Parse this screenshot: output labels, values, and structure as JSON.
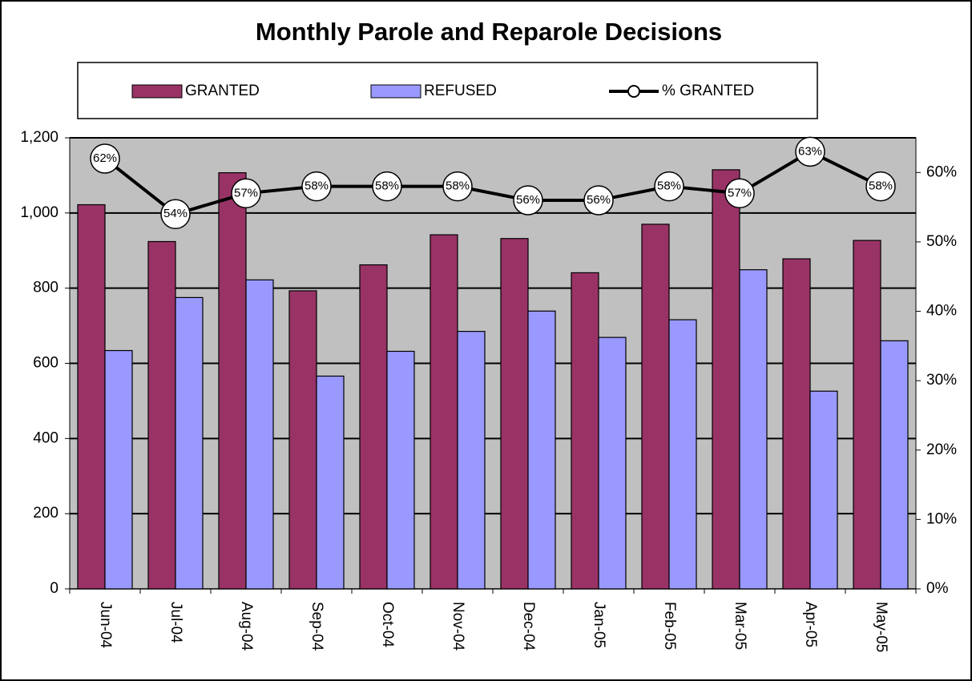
{
  "chart_data": {
    "type": "bar",
    "title": "Monthly Parole and Reparole Decisions",
    "categories": [
      "Jun-04",
      "Jul-04",
      "Aug-04",
      "Sep-04",
      "Oct-04",
      "Nov-04",
      "Dec-04",
      "Jan-05",
      "Feb-05",
      "Mar-05",
      "Apr-05",
      "May-05"
    ],
    "series": [
      {
        "name": "GRANTED",
        "color": "#993366",
        "type": "bar",
        "values": [
          1022,
          924,
          1107,
          793,
          862,
          942,
          932,
          841,
          970,
          1115,
          878,
          927
        ]
      },
      {
        "name": "REFUSED",
        "color": "#9999ff",
        "type": "bar",
        "values": [
          634,
          775,
          822,
          566,
          632,
          685,
          739,
          669,
          716,
          849,
          526,
          660
        ]
      },
      {
        "name": "% GRANTED",
        "color": "#000000",
        "type": "line",
        "axis": "y2",
        "values": [
          62,
          54,
          57,
          58,
          58,
          58,
          56,
          56,
          58,
          57,
          63,
          58
        ],
        "value_labels": [
          "62%",
          "54%",
          "57%",
          "58%",
          "58%",
          "58%",
          "56%",
          "56%",
          "58%",
          "57%",
          "63%",
          "58%"
        ]
      }
    ],
    "ylim": [
      0,
      1200
    ],
    "yticks": [
      0,
      200,
      400,
      600,
      800,
      {
        "value": 1000,
        "label": "1,000"
      },
      {
        "value": 1200,
        "label": "1,200"
      }
    ],
    "y2lim": [
      0,
      65
    ],
    "y2ticks": [
      {
        "value": 0,
        "label": "0%"
      },
      {
        "value": 10,
        "label": "10%"
      },
      {
        "value": 20,
        "label": "20%"
      },
      {
        "value": 30,
        "label": "30%"
      },
      {
        "value": 40,
        "label": "40%"
      },
      {
        "value": 50,
        "label": "50%"
      },
      {
        "value": 60,
        "label": "60%"
      }
    ],
    "grid": true,
    "plot_background": "#c0c0c0",
    "legend": "top"
  }
}
